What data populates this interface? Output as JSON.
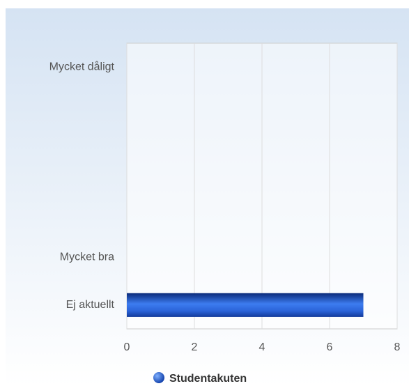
{
  "chart_data": {
    "type": "bar",
    "orientation": "horizontal",
    "categories": [
      "Mycket dåligt",
      null,
      null,
      null,
      "Mycket bra",
      "Ej aktuellt"
    ],
    "series": [
      {
        "name": "Studentakuten",
        "color": "#2a5fd6",
        "values": [
          0,
          0,
          0,
          0,
          0,
          7
        ]
      }
    ],
    "xlim": [
      0,
      8
    ],
    "xticks": [
      0,
      2,
      4,
      6,
      8
    ],
    "grid": true,
    "legend": "bottom"
  }
}
